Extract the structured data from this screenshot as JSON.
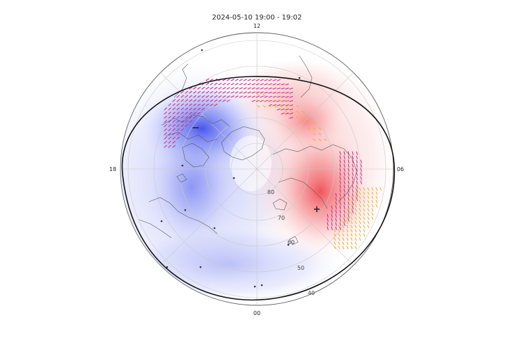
{
  "title": "2024-05-10 19:00 - 19:02",
  "mlt_labels": {
    "top": "12",
    "left": "18",
    "right": "06",
    "bottom": "00"
  },
  "latitude_labels": [
    "80",
    "70",
    "60",
    "50",
    "40"
  ],
  "extrema_markers": {
    "minimum": "−",
    "maximum": "+"
  },
  "colors": {
    "negative_potential": "#4a5cf0",
    "positive_potential": "#f2555a",
    "vector_strong": "#7a1fa8",
    "vector_mid": "#c8308a",
    "vector_weak": "#f0b030",
    "terminator": "#111111",
    "coastline": "#5a5a5a",
    "grid": "#c8c8c8"
  }
}
